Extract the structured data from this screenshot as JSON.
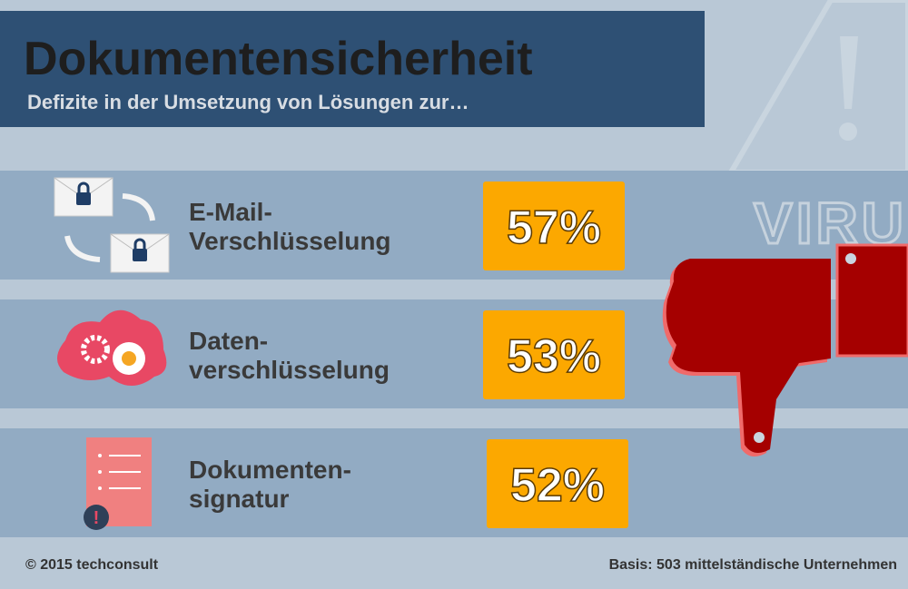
{
  "header": {
    "title": "Dokumentensicherheit",
    "subtitle": "Defizite in der Umsetzung von Lösungen zur…"
  },
  "items": [
    {
      "label": [
        "E-Mail-",
        "Verschlüsselung"
      ],
      "value": "57%"
    },
    {
      "label": [
        "Daten-",
        "verschlüsselung"
      ],
      "value": "53%"
    },
    {
      "label": [
        "Dokumenten-",
        "signatur"
      ],
      "value": "52%"
    }
  ],
  "background_text": "VIRU",
  "footer": {
    "copyright": "© 2015 techconsult",
    "basis": "Basis: 503 mittelständische Unternehmen"
  }
}
